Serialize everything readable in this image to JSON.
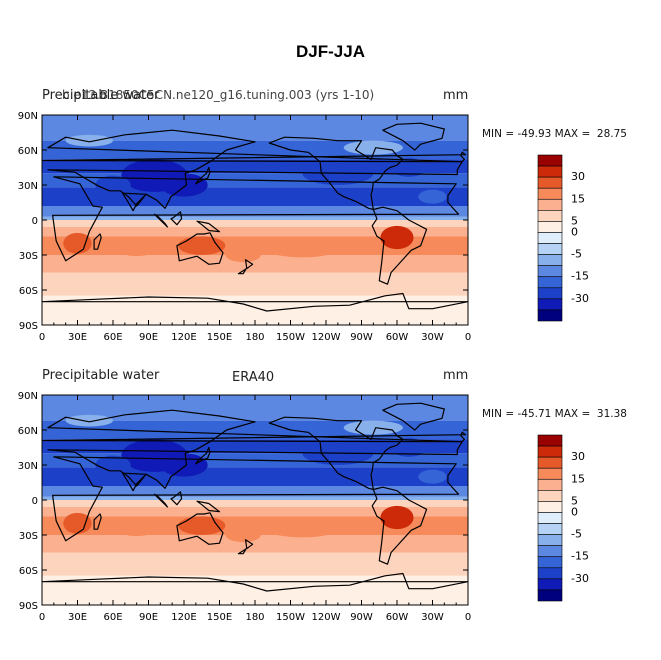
{
  "title": "DJF-JJA",
  "x_ticks": [
    "0",
    "30E",
    "60E",
    "90E",
    "120E",
    "150E",
    "180",
    "150W",
    "120W",
    "90W",
    "60W",
    "30W",
    "0"
  ],
  "y_ticks": [
    "90N",
    "60N",
    "30N",
    "0",
    "30S",
    "60S",
    "90S"
  ],
  "colorbar_labels": [
    "30",
    "15",
    "5",
    "0",
    "-5",
    "-15",
    "-30"
  ],
  "colors": [
    "#990000",
    "#cc2a08",
    "#e65a2a",
    "#f78a5a",
    "#fbb090",
    "#fdd5bf",
    "#fff0e6",
    "#e0eefb",
    "#b6d2f5",
    "#88b1ec",
    "#5d88e2",
    "#3564d6",
    "#1d40c9",
    "#101ab6",
    "#00007f"
  ],
  "panels": [
    {
      "left_label": "Precipitable water",
      "case_label": "b.e13.B1850C5CN.ne120_g16.tuning.003 (yrs 1-10)",
      "units": "mm",
      "minmax": "MIN = -49.93 MAX =  28.75"
    },
    {
      "left_label": "Precipitable water",
      "case_label": "ERA40",
      "units": "mm",
      "minmax": "MIN = -45.71 MAX =  31.38"
    }
  ]
}
